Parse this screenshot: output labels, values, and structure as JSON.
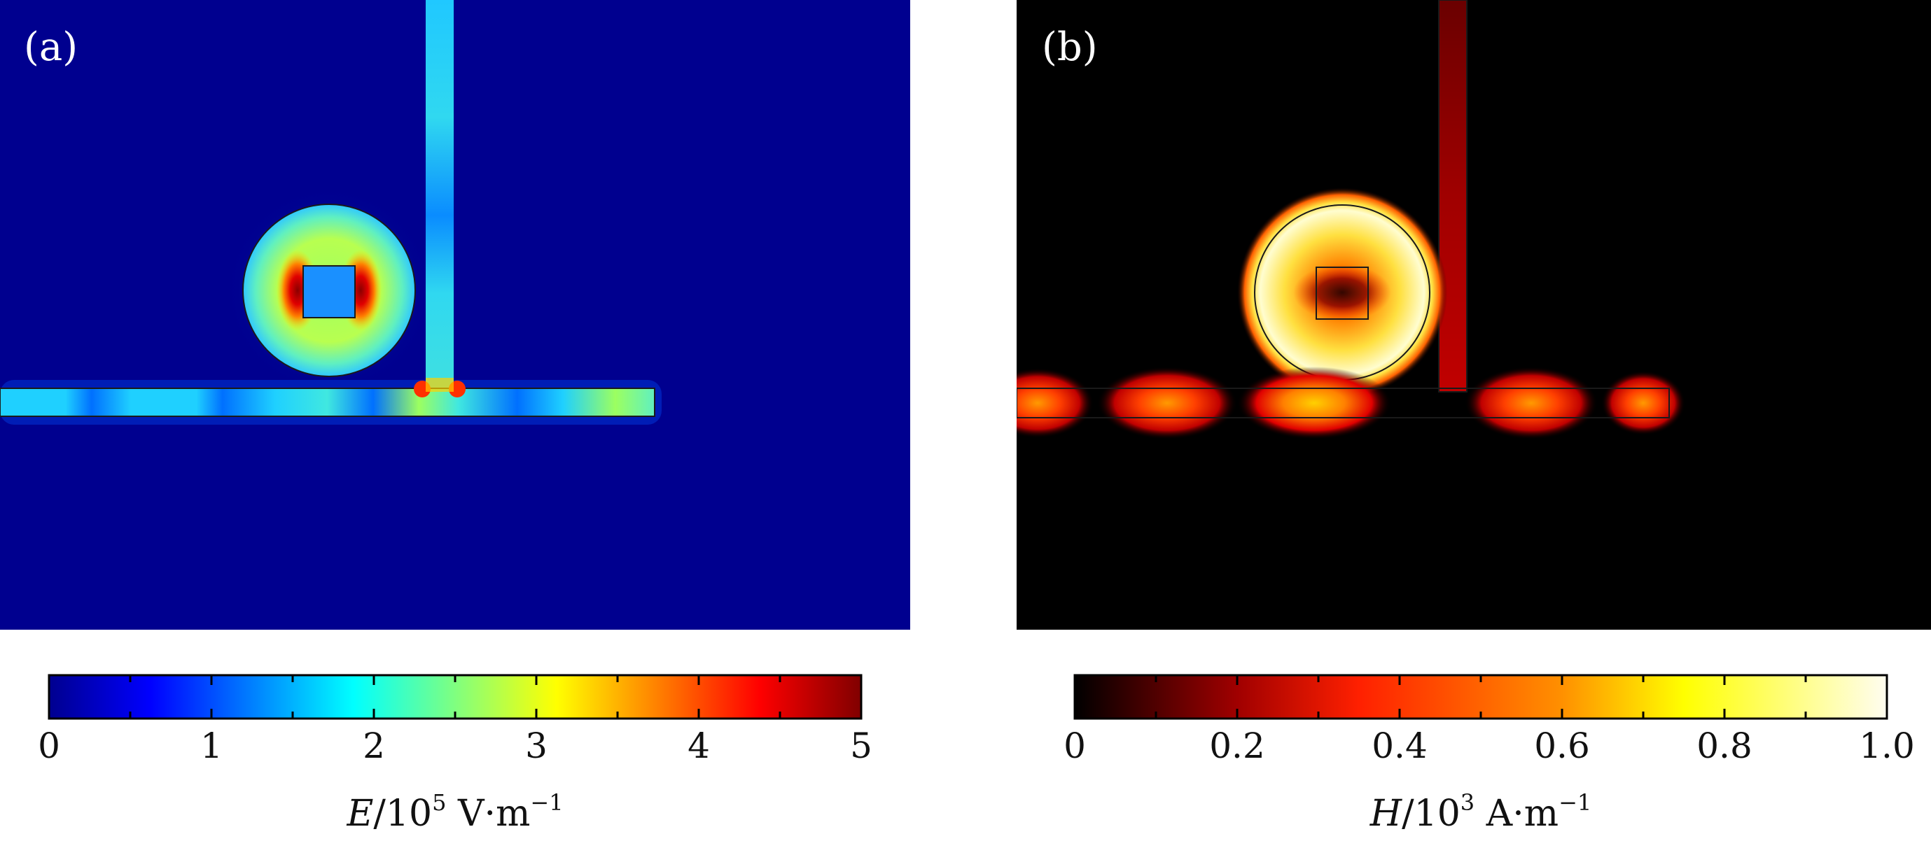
{
  "panels": [
    {
      "id": "a",
      "label": "(a)",
      "colormap": "jet",
      "colorbar": {
        "ticks": [
          "0",
          "1",
          "2",
          "3",
          "4",
          "5"
        ],
        "title_var": "E",
        "title_mid": "/10",
        "title_exp": "5",
        "title_unit": " V·m",
        "title_unit_exp": "−1",
        "range": [
          0,
          5
        ]
      }
    },
    {
      "id": "b",
      "label": "(b)",
      "colormap": "hot",
      "colorbar": {
        "ticks": [
          "0",
          "0.2",
          "0.4",
          "0.6",
          "0.8",
          "1.0"
        ],
        "title_var": "H",
        "title_mid": "/10",
        "title_exp": "3",
        "title_unit": " A·m",
        "title_unit_exp": "−1",
        "range": [
          0,
          1.0
        ]
      }
    }
  ],
  "colors": {
    "jet_background": "#00008f",
    "hot_background": "#000000"
  }
}
